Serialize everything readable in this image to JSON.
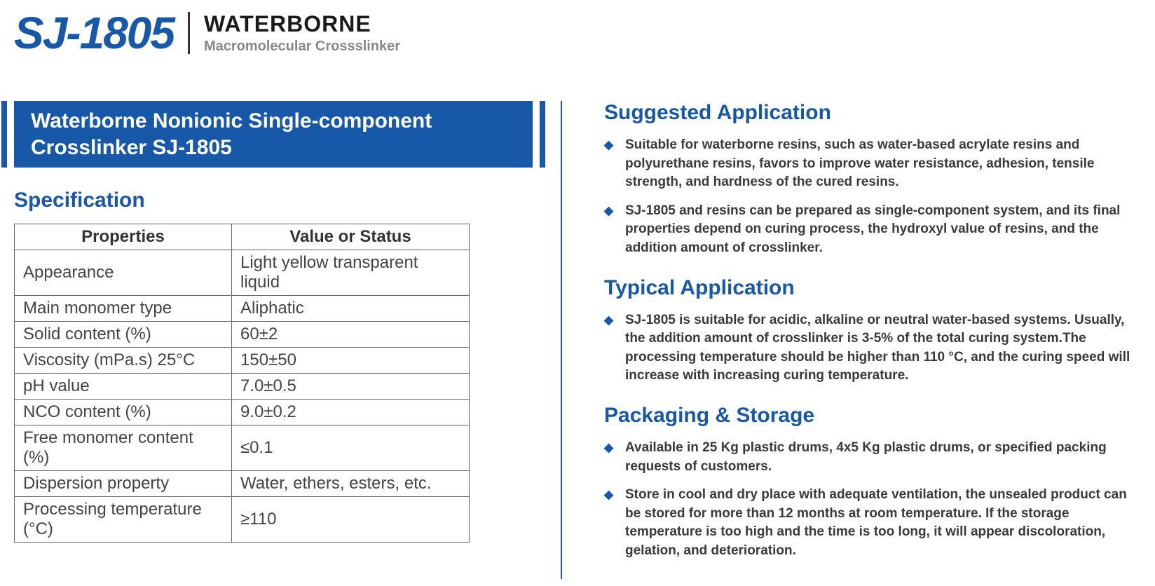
{
  "colors": {
    "brand_blue": "#1858a8",
    "text_dark": "#1a1a1a",
    "text_grey": "#888888",
    "table_border": "#666666",
    "body_text": "#444444",
    "background": "#ffffff"
  },
  "header": {
    "product_code": "SJ-1805",
    "title": "WATERBORNE",
    "subtitle": "Macromolecular Crossslinker"
  },
  "banner": "Waterborne Nonionic Single-component Crosslinker SJ-1805",
  "spec_section_title": "Specification",
  "spec_table": {
    "col1_header": "Properties",
    "col2_header": "Value or Status",
    "rows": [
      {
        "prop": "Appearance",
        "val": "Light yellow transparent liquid"
      },
      {
        "prop": "Main monomer type",
        "val": "Aliphatic"
      },
      {
        "prop": "Solid content (%)",
        "val": "60±2"
      },
      {
        "prop": "Viscosity (mPa.s) 25°C",
        "val": "150±50"
      },
      {
        "prop": "pH value",
        "val": "7.0±0.5"
      },
      {
        "prop": "NCO content (%)",
        "val": "9.0±0.2"
      },
      {
        "prop": "Free monomer content (%)",
        "val": "≤0.1"
      },
      {
        "prop": "Dispersion property",
        "val": "Water, ethers, esters, etc."
      },
      {
        "prop": "Processing temperature (°C)",
        "val": "≥110"
      }
    ]
  },
  "sections": {
    "suggested": {
      "title": "Suggested Application",
      "items": [
        "Suitable for waterborne resins, such as water-based acrylate resins and polyurethane resins, favors to improve water resistance, adhesion, tensile strength, and hardness of the cured resins.",
        "SJ-1805 and resins can be prepared as single-component system, and its final properties depend on curing process, the hydroxyl value of resins, and the addition amount of crosslinker."
      ]
    },
    "typical": {
      "title": "Typical Application",
      "items": [
        "SJ-1805 is suitable for acidic, alkaline or neutral water-based systems. Usually, the addition amount of crosslinker is 3-5% of the total curing system.The processing temperature should be higher than 110 °C, and the curing speed will increase with increasing curing temperature."
      ]
    },
    "packaging": {
      "title": "Packaging & Storage",
      "items": [
        "Available in 25 Kg plastic drums, 4x5 Kg plastic drums, or specified packing requests of customers.",
        "Store in cool and dry place with adequate ventilation, the unsealed product can be stored for more than 12 months at room temperature. If the storage temperature is too high and the time is too long, it will appear discoloration, gelation, and deterioration."
      ]
    }
  }
}
